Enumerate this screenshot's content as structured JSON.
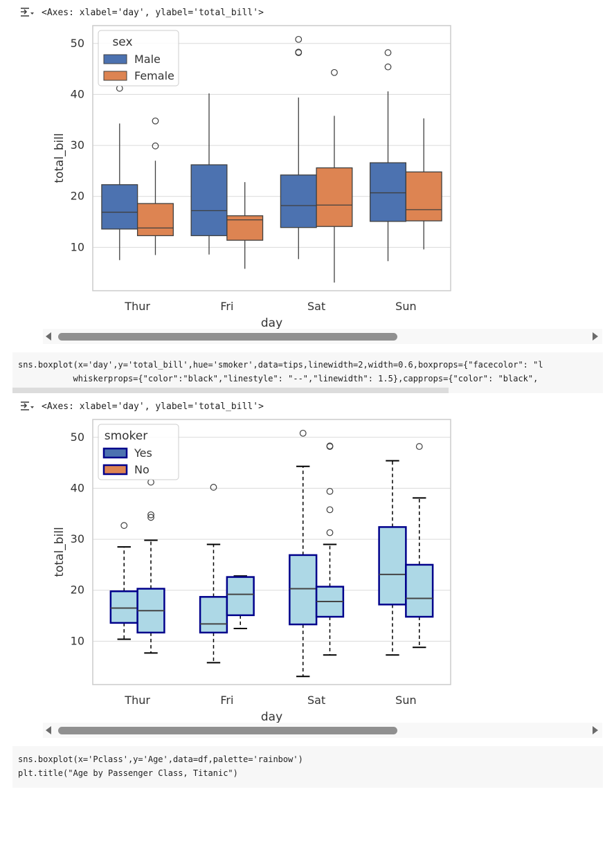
{
  "cells": [
    {
      "output_label": "<Axes: xlabel='day', ylabel='total_bill'>"
    },
    {
      "code_lines": [
        "sns.boxplot(x='day',y='total_bill',hue='smoker',data=tips,linewidth=2,width=0.6,boxprops={\"facecolor\": \"l",
        "           whiskerprops={\"color\":\"black\",\"linestyle\": \"--\",\"linewidth\": 1.5},capprops={\"color\": \"black\","
      ],
      "output_label": "<Axes: xlabel='day', ylabel='total_bill'>"
    },
    {
      "code_lines": [
        "sns.boxplot(x='Pclass',y='Age',data=df,palette='rainbow')",
        "plt.title(\"Age by Passenger Class, Titanic\")"
      ]
    }
  ],
  "icons": {
    "output": "output-toggle-icon",
    "scroll_left": "scroll-left-arrow-icon",
    "scroll_right": "scroll-right-arrow-icon"
  },
  "chart_data": [
    {
      "type": "box",
      "xlabel": "day",
      "ylabel": "total_bill",
      "categories": [
        "Thur",
        "Fri",
        "Sat",
        "Sun"
      ],
      "yticks": [
        10,
        20,
        30,
        40,
        50
      ],
      "ylim": [
        1.5,
        53.5
      ],
      "grid": true,
      "legend": {
        "title": "sex",
        "placement": "top-left"
      },
      "series": [
        {
          "name": "Male",
          "color": "#4c72b0",
          "boxes": [
            {
              "low": 7.5,
              "q1": 13.6,
              "median": 16.9,
              "q3": 22.3,
              "high": 34.3,
              "outliers": [
                41.2
              ]
            },
            {
              "low": 8.6,
              "q1": 12.3,
              "median": 17.2,
              "q3": 26.2,
              "high": 40.2,
              "outliers": []
            },
            {
              "low": 7.7,
              "q1": 13.9,
              "median": 18.2,
              "q3": 24.2,
              "high": 39.4,
              "outliers": [
                50.8,
                48.3,
                48.2
              ]
            },
            {
              "low": 7.3,
              "q1": 15.1,
              "median": 20.7,
              "q3": 26.6,
              "high": 40.6,
              "outliers": [
                48.2,
                45.4
              ]
            }
          ]
        },
        {
          "name": "Female",
          "color": "#dd8452",
          "boxes": [
            {
              "low": 8.5,
              "q1": 12.3,
              "median": 13.8,
              "q3": 18.6,
              "high": 27.0,
              "outliers": [
                34.8,
                29.9
              ]
            },
            {
              "low": 5.8,
              "q1": 11.4,
              "median": 15.4,
              "q3": 16.2,
              "high": 22.8,
              "outliers": []
            },
            {
              "low": 3.1,
              "q1": 14.1,
              "median": 18.3,
              "q3": 25.6,
              "high": 35.8,
              "outliers": [
                44.3
              ]
            },
            {
              "low": 9.6,
              "q1": 15.2,
              "median": 17.4,
              "q3": 24.8,
              "high": 35.3,
              "outliers": []
            }
          ]
        }
      ]
    },
    {
      "type": "box",
      "xlabel": "day",
      "ylabel": "total_bill",
      "categories": [
        "Thur",
        "Fri",
        "Sat",
        "Sun"
      ],
      "yticks": [
        10,
        20,
        30,
        40,
        50
      ],
      "ylim": [
        1.5,
        53.5
      ],
      "grid": true,
      "box_face": "#add8e6",
      "box_edge": "#00008b",
      "whisker_color": "#000000",
      "legend": {
        "title": "smoker",
        "placement": "top-left"
      },
      "series": [
        {
          "name": "Yes",
          "color": "#4c72b0",
          "boxes": [
            {
              "low": 10.4,
              "q1": 13.6,
              "median": 16.5,
              "q3": 19.8,
              "high": 28.5,
              "outliers": [
                32.7
              ]
            },
            {
              "low": 5.8,
              "q1": 11.7,
              "median": 13.4,
              "q3": 18.7,
              "high": 29.0,
              "outliers": [
                40.2
              ]
            },
            {
              "low": 3.1,
              "q1": 13.3,
              "median": 20.3,
              "q3": 26.9,
              "high": 44.3,
              "outliers": [
                50.8
              ]
            },
            {
              "low": 7.3,
              "q1": 17.2,
              "median": 23.1,
              "q3": 32.4,
              "high": 45.4,
              "outliers": []
            }
          ]
        },
        {
          "name": "No",
          "color": "#dd8452",
          "boxes": [
            {
              "low": 7.7,
              "q1": 11.7,
              "median": 16.0,
              "q3": 20.3,
              "high": 29.8,
              "outliers": [
                41.2,
                34.8,
                34.3
              ]
            },
            {
              "low": 12.5,
              "q1": 15.1,
              "median": 19.2,
              "q3": 22.6,
              "high": 22.8,
              "outliers": []
            },
            {
              "low": 7.3,
              "q1": 14.8,
              "median": 17.8,
              "q3": 20.7,
              "high": 29.0,
              "outliers": [
                48.3,
                48.2,
                39.4,
                35.8,
                31.3
              ]
            },
            {
              "low": 8.8,
              "q1": 14.8,
              "median": 18.4,
              "q3": 25.0,
              "high": 38.1,
              "outliers": [
                48.2
              ]
            }
          ]
        }
      ]
    }
  ]
}
